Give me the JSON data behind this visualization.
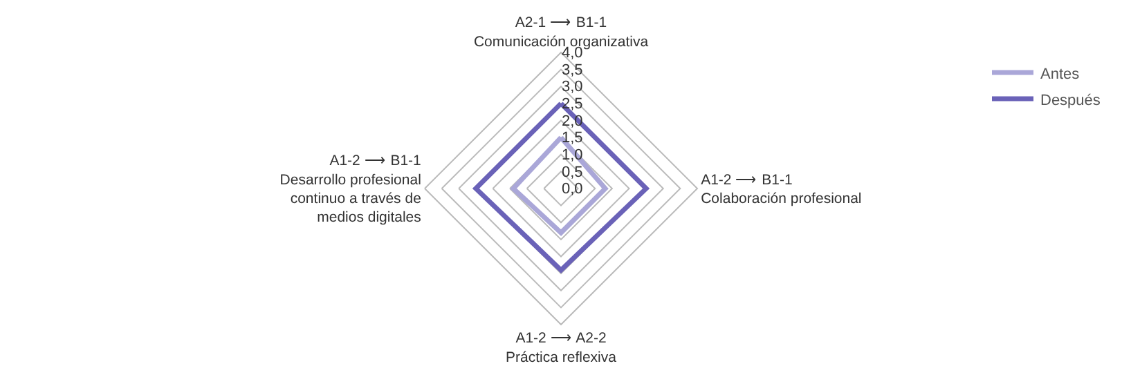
{
  "chart_data": {
    "type": "radar",
    "categories": [
      "A2-1 ⟶ B1-1\nComunicación organizativa",
      "A1-2 ⟶ B1-1\nColaboración profesional",
      "A1-2 ⟶ A2-2\nPráctica reflexiva",
      "A1-2 ⟶ B1-1\nDesarrollo profesional\ncontinuo a través de\nmedios digitales"
    ],
    "series": [
      {
        "name": "Antes",
        "color": "#aaa7d8",
        "values": [
          1.5,
          1.3,
          1.3,
          1.4
        ]
      },
      {
        "name": "Después",
        "color": "#6a62b8",
        "values": [
          2.5,
          2.5,
          2.4,
          2.5
        ]
      }
    ],
    "ylim": [
      0,
      4
    ],
    "yticks": [
      {
        "value": 0,
        "label": "0,0"
      },
      {
        "value": 0.5,
        "label": "0,5"
      },
      {
        "value": 1,
        "label": "1,0"
      },
      {
        "value": 1.5,
        "label": "1,5"
      },
      {
        "value": 2,
        "label": "2,0"
      },
      {
        "value": 2.5,
        "label": "2,5"
      },
      {
        "value": 3,
        "label": "3,0"
      },
      {
        "value": 3.5,
        "label": "3,5"
      },
      {
        "value": 4,
        "label": "4,0"
      }
    ],
    "legend": "top right",
    "grid": true,
    "marker": "none",
    "line_style": "solid"
  }
}
